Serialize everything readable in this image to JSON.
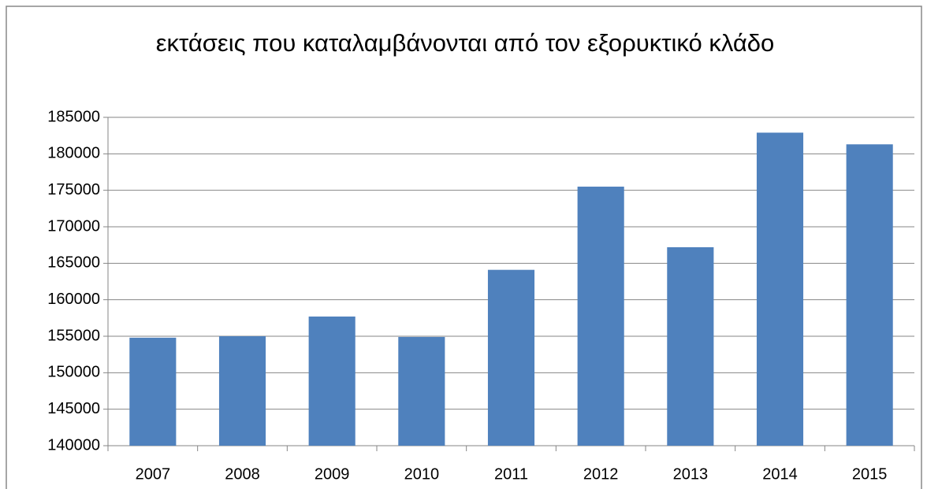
{
  "chart_data": {
    "type": "bar",
    "title": "εκτάσεις που καταλαμβάνονται από τον εξορυκτικό κλάδο",
    "categories": [
      "2007",
      "2008",
      "2009",
      "2010",
      "2011",
      "2012",
      "2013",
      "2014",
      "2015"
    ],
    "values": [
      154800,
      155000,
      157700,
      154900,
      164100,
      175500,
      167200,
      182900,
      181300
    ],
    "color": "#4f81bd",
    "ylim": [
      140000,
      185000
    ],
    "yticks": [
      140000,
      145000,
      150000,
      155000,
      160000,
      165000,
      170000,
      175000,
      180000,
      185000
    ],
    "grid": true
  }
}
